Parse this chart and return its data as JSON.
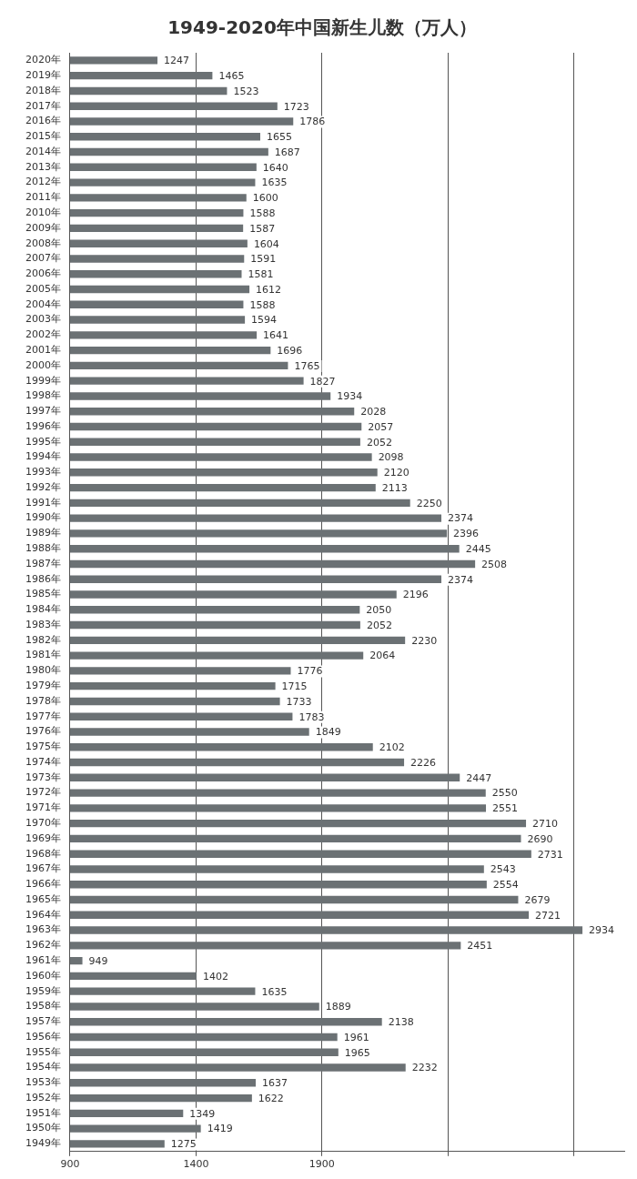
{
  "chart_data": {
    "type": "bar",
    "orientation": "horizontal",
    "title": "1949-2020年中国新生儿数（万人）",
    "categories": [
      "2020年",
      "2019年",
      "2018年",
      "2017年",
      "2016年",
      "2015年",
      "2014年",
      "2013年",
      "2012年",
      "2011年",
      "2010年",
      "2009年",
      "2008年",
      "2007年",
      "2006年",
      "2005年",
      "2004年",
      "2003年",
      "2002年",
      "2001年",
      "2000年",
      "1999年",
      "1998年",
      "1997年",
      "1996年",
      "1995年",
      "1994年",
      "1993年",
      "1992年",
      "1991年",
      "1990年",
      "1989年",
      "1988年",
      "1987年",
      "1986年",
      "1985年",
      "1984年",
      "1983年",
      "1982年",
      "1981年",
      "1980年",
      "1979年",
      "1978年",
      "1977年",
      "1976年",
      "1975年",
      "1974年",
      "1973年",
      "1972年",
      "1971年",
      "1970年",
      "1969年",
      "1968年",
      "1967年",
      "1966年",
      "1965年",
      "1964年",
      "1963年",
      "1962年",
      "1961年",
      "1960年",
      "1959年",
      "1958年",
      "1957年",
      "1956年",
      "1955年",
      "1954年",
      "1953年",
      "1952年",
      "1951年",
      "1950年",
      "1949年"
    ],
    "values": [
      1247,
      1465,
      1523,
      1723,
      1786,
      1655,
      1687,
      1640,
      1635,
      1600,
      1588,
      1587,
      1604,
      1591,
      1581,
      1612,
      1588,
      1594,
      1641,
      1696,
      1765,
      1827,
      1934,
      2028,
      2057,
      2052,
      2098,
      2120,
      2113,
      2250,
      2374,
      2396,
      2445,
      2508,
      2374,
      2196,
      2050,
      2052,
      2230,
      2064,
      1776,
      1715,
      1733,
      1783,
      1849,
      2102,
      2226,
      2447,
      2550,
      2551,
      2710,
      2690,
      2731,
      2543,
      2554,
      2679,
      2721,
      2934,
      2451,
      949,
      1402,
      1635,
      1889,
      2138,
      1961,
      1965,
      2232,
      1637,
      1622,
      1349,
      1419,
      1275
    ],
    "color": "#6b7174",
    "xlim": [
      900,
      3100
    ],
    "xticks": [
      900,
      1400,
      1900,
      {
        "value": 2400,
        "label": null
      },
      {
        "value": 2900,
        "label": null
      }
    ],
    "data_labels": true,
    "grid": "x",
    "legend": false
  }
}
